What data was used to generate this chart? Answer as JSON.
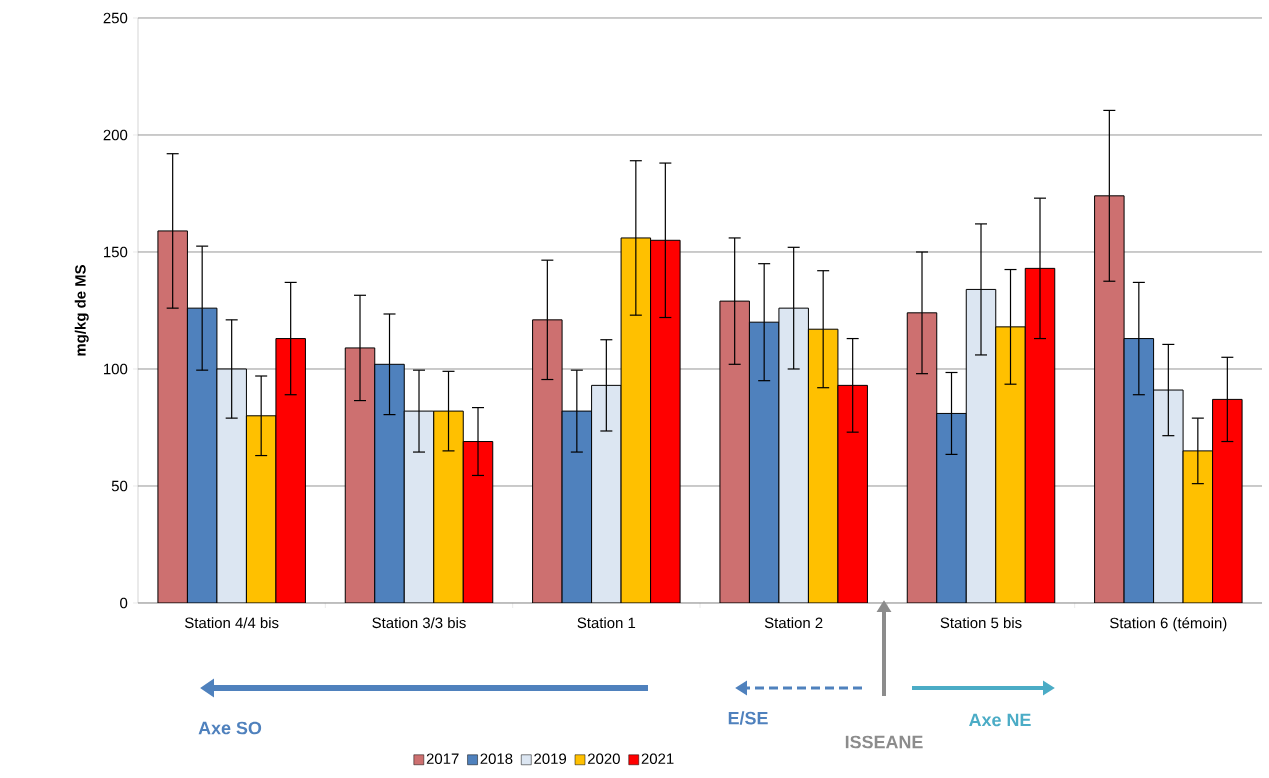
{
  "chart_data": {
    "type": "bar",
    "ylabel": "mg/kg de MS",
    "categories": [
      "Station 4/4 bis",
      "Station 3/3 bis",
      "Station 1",
      "Station 2",
      "Station 5 bis",
      "Station 6 (témoin)"
    ],
    "series": [
      {
        "name": "2017",
        "color": "#cd7070",
        "values": [
          159,
          109,
          121,
          129,
          124,
          174
        ],
        "errors": [
          33,
          22.5,
          25.5,
          27,
          26,
          36.5
        ]
      },
      {
        "name": "2018",
        "color": "#4f81bd",
        "values": [
          126,
          102,
          82,
          120,
          81,
          113
        ],
        "errors": [
          26.5,
          21.5,
          17.5,
          25,
          17.5,
          24
        ]
      },
      {
        "name": "2019",
        "color": "#dce6f2",
        "values": [
          100,
          82,
          93,
          126,
          134,
          91
        ],
        "errors": [
          21,
          17.5,
          19.5,
          26,
          28,
          19.5
        ]
      },
      {
        "name": "2020",
        "color": "#ffc000",
        "values": [
          80,
          82,
          156,
          117,
          118,
          65
        ],
        "errors": [
          17,
          17,
          33,
          25,
          24.5,
          14
        ]
      },
      {
        "name": "2021",
        "color": "#ff0000",
        "values": [
          113,
          69,
          155,
          93,
          143,
          87
        ],
        "errors": [
          24,
          14.5,
          33,
          20,
          30,
          18
        ]
      }
    ],
    "ylim": [
      0,
      250
    ],
    "yticks": [
      0,
      50,
      100,
      150,
      200,
      250
    ],
    "grid": "y",
    "legend": "bottom",
    "annotations": [
      "Axe SO",
      "E/SE",
      "ISSEANE",
      "Axe NE"
    ]
  }
}
